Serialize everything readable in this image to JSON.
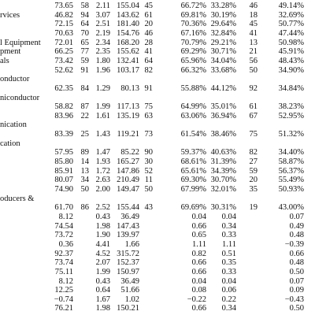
{
  "table": {
    "rows": [
      [
        null,
        "73.65",
        "58",
        "2.11",
        "155.04",
        "45",
        "66.72%",
        "33.28%",
        "46",
        "49.14%"
      ],
      [
        "rvices",
        "46.82",
        "94",
        "3.07",
        "143.62",
        "61",
        "69.81%",
        "30.19%",
        "18",
        "32.69%"
      ],
      [
        null,
        "72.15",
        "64",
        "2.51",
        "181.40",
        "20",
        "70.36%",
        "29.64%",
        "45",
        "50.77%"
      ],
      [
        null,
        "70.63",
        "70",
        "2.19",
        "154.76",
        "46",
        "67.16%",
        "32.84%",
        "41",
        "47.44%"
      ],
      [
        "l Equipment",
        "72.01",
        "65",
        "2.34",
        "168.20",
        "28",
        "70.79%",
        "29.21%",
        "13",
        "50.98%"
      ],
      [
        "pment",
        "66.25",
        "77",
        "2.35",
        "155.62",
        "41",
        "69.29%",
        "30.71%",
        "21",
        "45.91%"
      ],
      [
        "als",
        "73.42",
        "59",
        "1.80",
        "132.41",
        "64",
        "65.96%",
        "34.04%",
        "56",
        "48.43%"
      ],
      [
        null,
        "52.62",
        "91",
        "1.96",
        "103.17",
        "82",
        "66.32%",
        "33.68%",
        "50",
        "34.90%"
      ],
      [
        "onductor",
        null,
        null,
        null,
        null,
        null,
        null,
        null,
        null,
        null
      ],
      [
        null,
        "62.35",
        "84",
        "1.29",
        "80.13",
        "91",
        "55.88%",
        "44.12%",
        "92",
        "34.84%"
      ],
      [
        "niconductor",
        null,
        null,
        null,
        null,
        null,
        null,
        null,
        null,
        null
      ],
      [
        null,
        "58.82",
        "87",
        "1.99",
        "117.13",
        "75",
        "64.99%",
        "35.01%",
        "61",
        "38.23%"
      ],
      [
        null,
        "83.96",
        "22",
        "1.61",
        "135.19",
        "63",
        "63.06%",
        "36.94%",
        "67",
        "52.95%"
      ],
      [
        "nication",
        null,
        null,
        null,
        null,
        null,
        null,
        null,
        null,
        null
      ],
      [
        null,
        "83.39",
        "25",
        "1.43",
        "119.21",
        "73",
        "61.54%",
        "38.46%",
        "75",
        "51.32%"
      ],
      [
        "cation",
        null,
        null,
        null,
        null,
        null,
        null,
        null,
        null,
        null
      ],
      [
        null,
        "57.95",
        "89",
        "1.47",
        "85.22",
        "90",
        "59.37%",
        "40.63%",
        "82",
        "34.40%"
      ],
      [
        null,
        "85.80",
        "14",
        "1.93",
        "165.27",
        "30",
        "68.61%",
        "31.39%",
        "27",
        "58.87%"
      ],
      [
        null,
        "85.91",
        "13",
        "1.72",
        "147.86",
        "52",
        "65.61%",
        "34.39%",
        "59",
        "56.37%"
      ],
      [
        null,
        "80.07",
        "34",
        "2.63",
        "210.49",
        "11",
        "69.30%",
        "30.70%",
        "20",
        "55.49%"
      ],
      [
        null,
        "74.90",
        "50",
        "2.00",
        "149.47",
        "50",
        "67.99%",
        "32.01%",
        "35",
        "50.93%"
      ],
      [
        "oducers &",
        null,
        null,
        null,
        null,
        null,
        null,
        null,
        null,
        null
      ],
      [
        null,
        "61.70",
        "86",
        "2.52",
        "155.44",
        "43",
        "69.69%",
        "30.31%",
        "19",
        "43.00%"
      ],
      [
        null,
        "8.12",
        null,
        "0.43",
        "36.49",
        null,
        "0.04",
        "0.04",
        null,
        "0.07"
      ],
      [
        null,
        "74.54",
        null,
        "1.98",
        "147.43",
        null,
        "0.66",
        "0.34",
        null,
        "0.49"
      ],
      [
        null,
        "73.72",
        null,
        "1.90",
        "139.97",
        null,
        "0.65",
        "0.33",
        null,
        "0.48"
      ],
      [
        null,
        "0.36",
        null,
        "4.41",
        "1.66",
        null,
        "1.11",
        "1.11",
        null,
        "−0.39"
      ],
      [
        null,
        "92.37",
        null,
        "4.52",
        "315.72",
        null,
        "0.82",
        "0.51",
        null,
        "0.66"
      ],
      [
        null,
        "73.74",
        null,
        "2.07",
        "152.37",
        null,
        "0.66",
        "0.35",
        null,
        "0.48"
      ],
      [
        null,
        "75.11",
        null,
        "1.99",
        "150.97",
        null,
        "0.66",
        "0.33",
        null,
        "0.50"
      ],
      [
        null,
        "8.12",
        null,
        "0.43",
        "36.49",
        null,
        "0.04",
        "0.04",
        null,
        "0.07"
      ],
      [
        null,
        "12.25",
        null,
        "0.64",
        "51.66",
        null,
        "0.08",
        "0.06",
        null,
        "0.09"
      ],
      [
        null,
        "−0.74",
        null,
        "1.67",
        "1.02",
        null,
        "−0.22",
        "0.22",
        null,
        "−0.43"
      ],
      [
        null,
        "76.21",
        null,
        "1.98",
        "150.21",
        null,
        "0.66",
        "0.34",
        null,
        "0.50"
      ]
    ]
  }
}
